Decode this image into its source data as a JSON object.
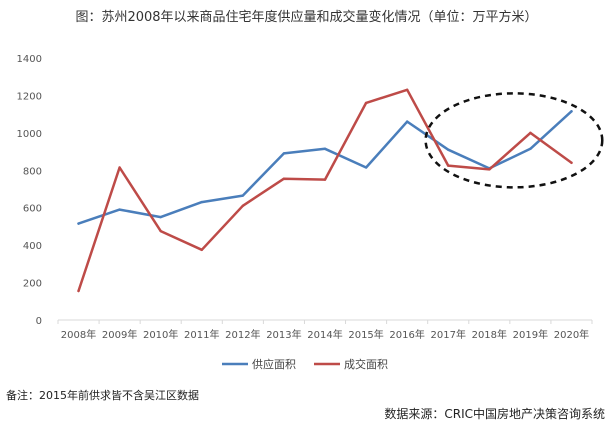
{
  "chart_data": {
    "type": "line",
    "title": "图：苏州2008年以来商品住宅年度供应量和成交量变化情况（单位：万平方米）",
    "categories": [
      "2008年",
      "2009年",
      "2010年",
      "2011年",
      "2012年",
      "2013年",
      "2014年",
      "2015年",
      "2016年",
      "2017年",
      "2018年",
      "2019年",
      "2020年"
    ],
    "ylim": [
      0,
      1400
    ],
    "yticks": [
      0,
      200,
      400,
      600,
      800,
      1000,
      1200,
      1400
    ],
    "grid": false,
    "legend_position": "bottom",
    "series": [
      {
        "name": "供应面积",
        "color": "#4a7ebb",
        "values": [
          515,
          590,
          550,
          630,
          665,
          890,
          915,
          815,
          1060,
          910,
          810,
          915,
          1115
        ]
      },
      {
        "name": "成交面积",
        "color": "#be4b48",
        "values": [
          155,
          815,
          475,
          375,
          610,
          755,
          750,
          1160,
          1230,
          825,
          805,
          1000,
          840
        ]
      }
    ],
    "annotation": {
      "type": "dashed-ellipse",
      "highlight": [
        "2017年",
        "2020年"
      ],
      "color": "#111111"
    }
  },
  "note": "备注：2015年前供求皆不含吴江区数据",
  "source": "数据来源：CRIC中国房地产决策咨询系统"
}
